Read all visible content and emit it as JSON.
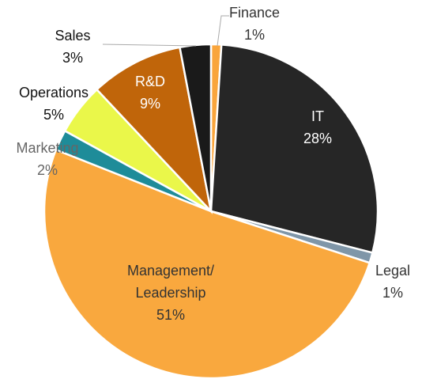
{
  "chart_data": {
    "type": "pie",
    "categories": [
      "Finance",
      "IT",
      "Legal",
      "Management/Leadership",
      "Marketing",
      "Operations",
      "R&D",
      "Sales"
    ],
    "values": [
      1,
      28,
      1,
      51,
      2,
      5,
      9,
      3
    ],
    "value_labels": [
      "1%",
      "28%",
      "1%",
      "51%",
      "2%",
      "5%",
      "9%",
      "3%"
    ],
    "colors": [
      "#f9a53c",
      "#262626",
      "#7f96a8",
      "#f9a83e",
      "#1e8c99",
      "#eaf74a",
      "#c0650a",
      "#1a1a1a"
    ]
  }
}
